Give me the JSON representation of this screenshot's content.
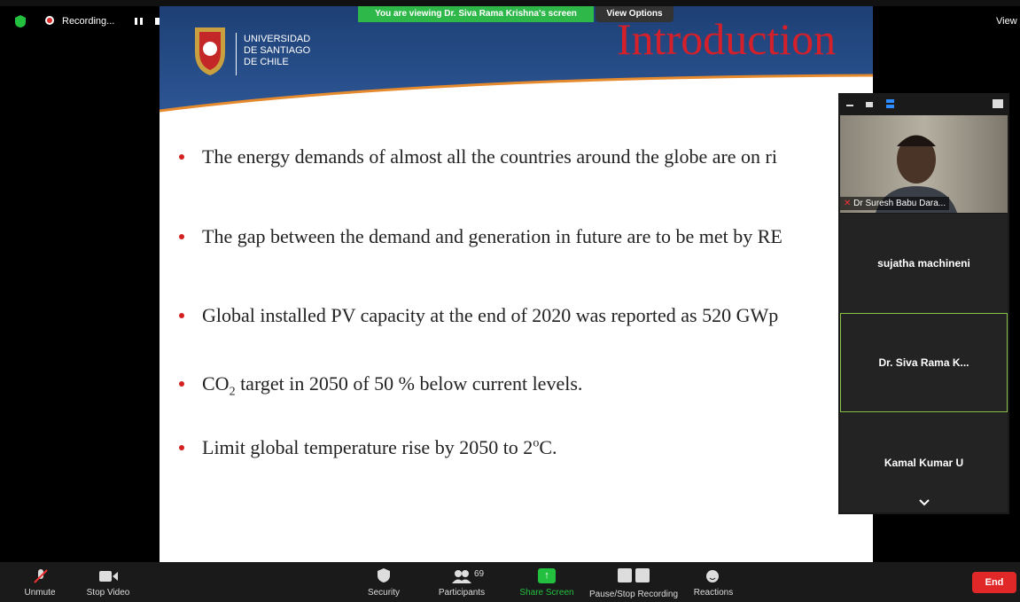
{
  "top_bar": {
    "recording": "Recording...",
    "banner": "You are viewing Dr. Siva Rama Krishna's screen",
    "view_options": "View Options",
    "view": "View"
  },
  "slide": {
    "university": [
      "UNIVERSIDAD",
      "DE SANTIAGO",
      "DE CHILE"
    ],
    "title": "Introduction",
    "bullets": [
      [
        "The energy demands of almost all the countries around the globe are on ri"
      ],
      [
        "The gap between the demand and generation in future are to be met by RE"
      ],
      [
        "Global installed PV capacity at the end of 2020 was reported as 520 GWp"
      ],
      [
        "CO",
        "2",
        " target in 2050 of 50 % below current levels."
      ],
      [
        "Limit global temperature rise by 2050 to 2",
        "o",
        "C."
      ]
    ]
  },
  "participants_panel": {
    "names": [
      "Dr Suresh Babu Dara...",
      "sujatha machineni",
      "Dr. Siva Rama K...",
      "Kamal Kumar U"
    ]
  },
  "toolbar": {
    "unmute": "Unmute",
    "stop_video": "Stop Video",
    "security": "Security",
    "participant_count": 69,
    "participants": "Participants",
    "share_screen": "Share Screen",
    "recording": "Pause/Stop Recording",
    "reactions": "Reactions",
    "end": "End"
  }
}
